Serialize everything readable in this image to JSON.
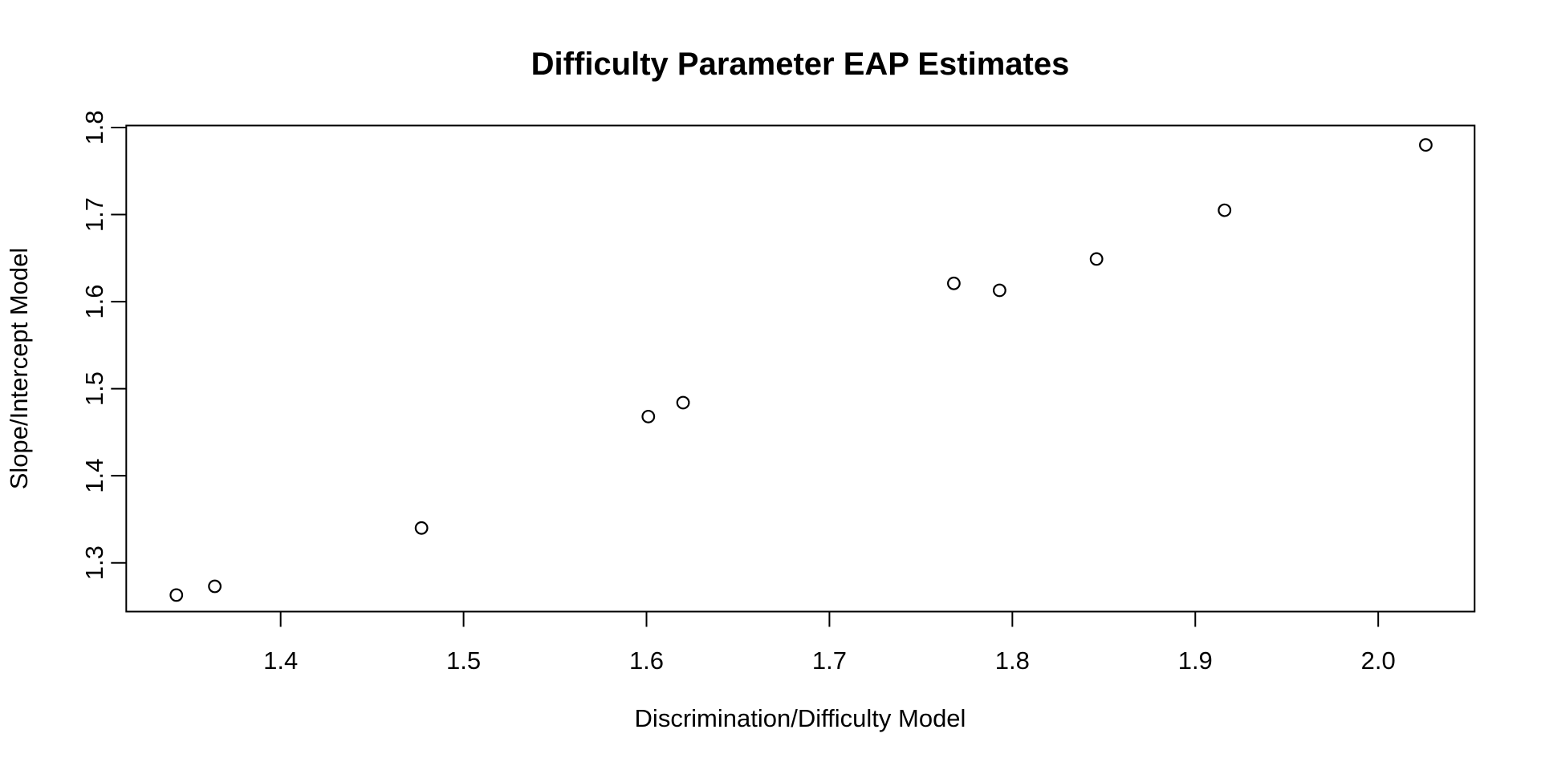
{
  "figure": {
    "background_color": "#ffffff",
    "foreground_color": "#000000"
  },
  "chart_data": {
    "type": "scatter",
    "title": "Difficulty Parameter EAP Estimates",
    "xlabel": "Discrimination/Difficulty Model",
    "ylabel": "Slope/Intercept Model",
    "xlim": [
      1.3156,
      2.0527
    ],
    "ylim": [
      1.244,
      1.8023
    ],
    "x_ticks": [
      1.4,
      1.5,
      1.6,
      1.7,
      1.8,
      1.9,
      2.0
    ],
    "x_tick_labels": [
      "1.4",
      "1.5",
      "1.6",
      "1.7",
      "1.8",
      "1.9",
      "2.0"
    ],
    "y_ticks": [
      1.3,
      1.4,
      1.5,
      1.6,
      1.7,
      1.8
    ],
    "y_tick_labels": [
      "1.3",
      "1.4",
      "1.5",
      "1.6",
      "1.7",
      "1.8"
    ],
    "grid": false,
    "legend_position": "none",
    "marker": {
      "shape": "open-circle",
      "color": "#000000"
    },
    "points": [
      {
        "x": 1.343,
        "y": 1.263
      },
      {
        "x": 1.364,
        "y": 1.273
      },
      {
        "x": 1.477,
        "y": 1.34
      },
      {
        "x": 1.601,
        "y": 1.468
      },
      {
        "x": 1.62,
        "y": 1.484
      },
      {
        "x": 1.768,
        "y": 1.621
      },
      {
        "x": 1.793,
        "y": 1.613
      },
      {
        "x": 1.846,
        "y": 1.649
      },
      {
        "x": 1.916,
        "y": 1.705
      },
      {
        "x": 2.026,
        "y": 1.78
      }
    ]
  }
}
